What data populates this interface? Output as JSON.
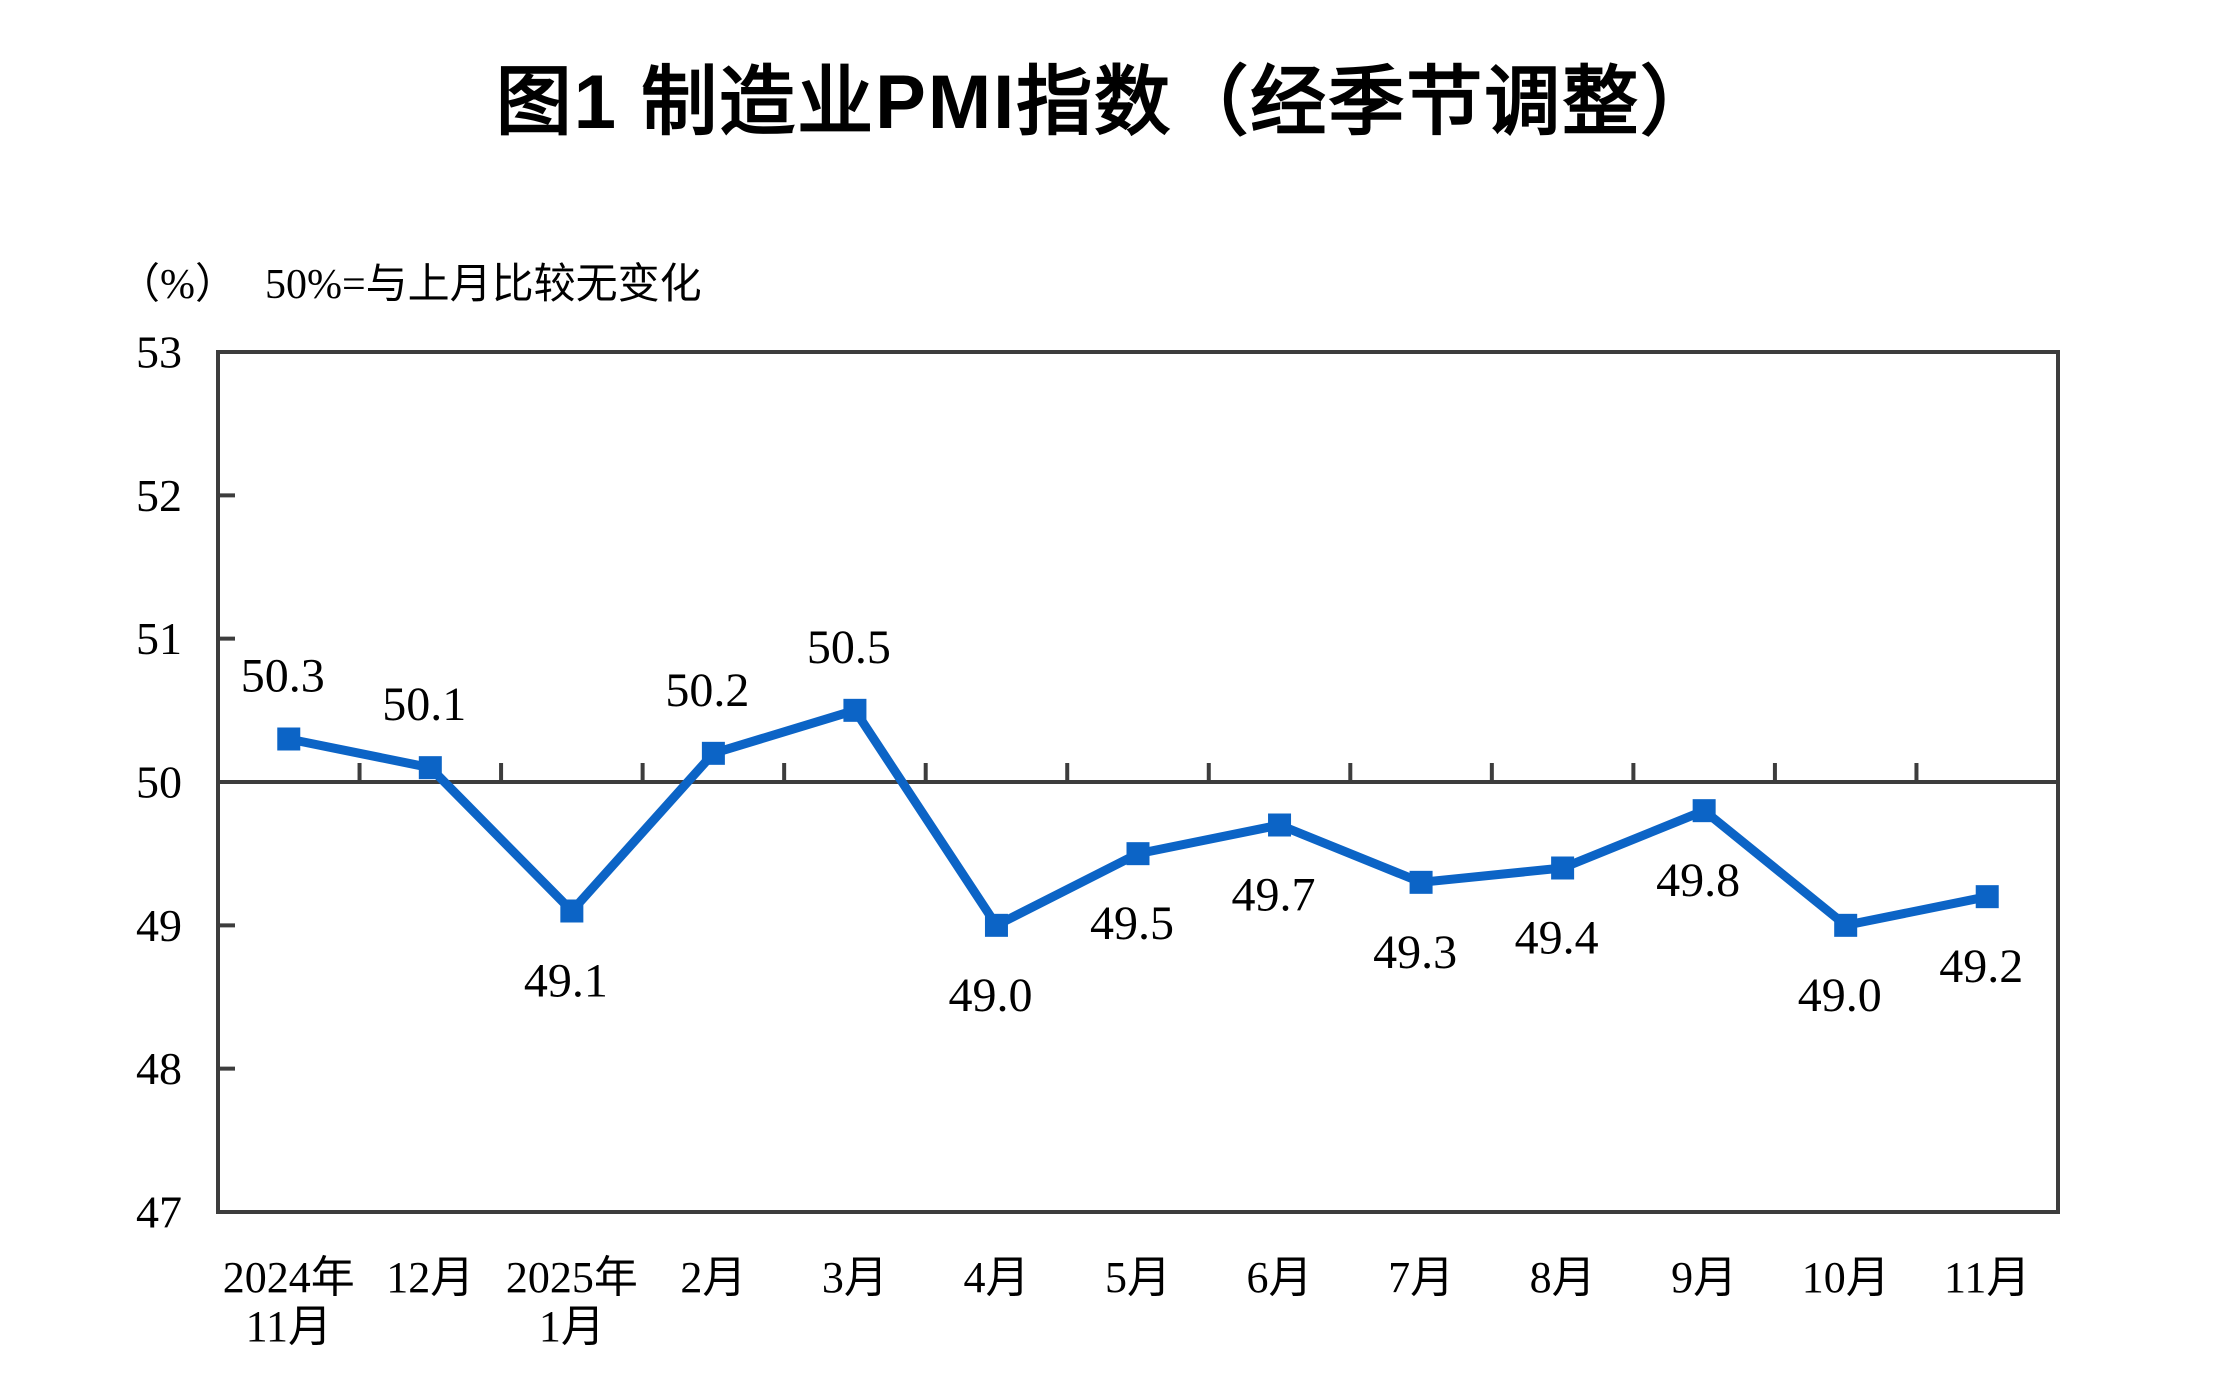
{
  "figure": {
    "title": "图1  制造业PMI指数（经季节调整）",
    "unit_note": "（%）",
    "reference_note": "50%=与上月比较无变化"
  },
  "chart_data": {
    "type": "line",
    "title": "图1  制造业PMI指数（经季节调整）",
    "unit_note": "（%）",
    "annotation": "50%=与上月比较无变化",
    "categories": [
      "2024年\n11月",
      "12月",
      "2025年\n1月",
      "2月",
      "3月",
      "4月",
      "5月",
      "6月",
      "7月",
      "8月",
      "9月",
      "10月",
      "11月"
    ],
    "values": [
      50.3,
      50.1,
      49.1,
      50.2,
      50.5,
      49.0,
      49.5,
      49.7,
      49.3,
      49.4,
      49.8,
      49.0,
      49.2
    ],
    "data_labels": [
      "50.3",
      "50.1",
      "49.1",
      "50.2",
      "50.5",
      "49.0",
      "49.5",
      "49.7",
      "49.3",
      "49.4",
      "49.8",
      "49.0",
      "49.2"
    ],
    "label_placement": [
      "above",
      "above",
      "below",
      "above",
      "above",
      "below",
      "below",
      "below",
      "below",
      "below",
      "below",
      "below",
      "below"
    ],
    "ylabel": "（%）",
    "xlabel": "",
    "ylim": [
      47,
      53
    ],
    "yticks": [
      47,
      48,
      49,
      50,
      51,
      52,
      53
    ],
    "reference_line_y": 50,
    "grid": false,
    "legend_position": "none",
    "colors": {
      "line": "#0C64C6",
      "marker": "#0C64C6",
      "axis": "#3D3D3D",
      "text": "#000000"
    }
  }
}
